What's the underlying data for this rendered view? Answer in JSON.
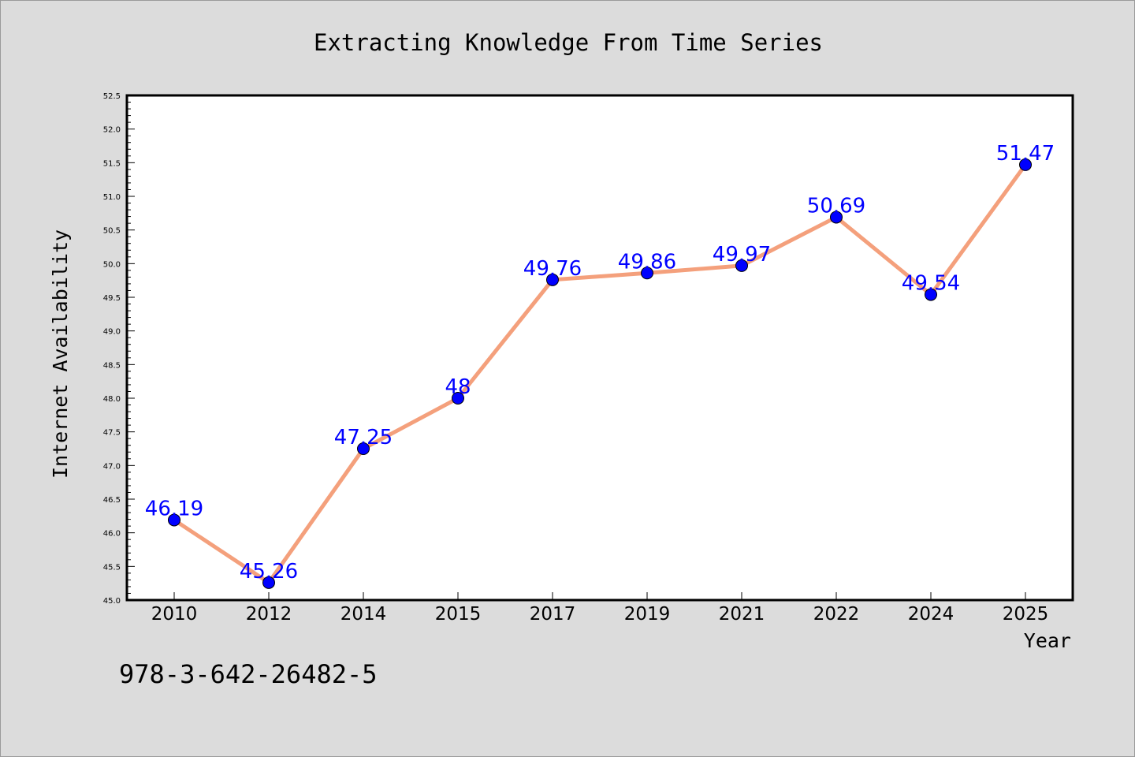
{
  "chart_data": {
    "type": "line",
    "title": "Extracting Knowledge From Time Series",
    "xlabel": "Year",
    "ylabel": "Internet Availability",
    "categories": [
      "2010",
      "2012",
      "2014",
      "2015",
      "2017",
      "2019",
      "2021",
      "2022",
      "2024",
      "2025"
    ],
    "series": [
      {
        "values": [
          46.19,
          45.26,
          47.25,
          48,
          49.76,
          49.86,
          49.97,
          50.69,
          49.54,
          51.47
        ],
        "labels": [
          "46.19",
          "45.26",
          "47.25",
          "48",
          "49.76",
          "49.86",
          "49.97",
          "50.69",
          "49.54",
          "51.47"
        ],
        "line_color": "#f4a07c",
        "marker_color": "#0000ff"
      }
    ],
    "ylim": [
      45.0,
      52.5
    ],
    "yticks": [
      "45.0",
      "45.5",
      "46.0",
      "46.5",
      "47.0",
      "47.5",
      "48.0",
      "48.5",
      "49.0",
      "49.5",
      "50.0",
      "50.5",
      "51.0",
      "51.5",
      "52.0",
      "52.5"
    ],
    "grid": false,
    "legend": "none",
    "background_color": "#dcdcdc",
    "plot_background_color": "#ffffff",
    "label_color": "#0000ff"
  },
  "footnote": "978-3-642-26482-5"
}
